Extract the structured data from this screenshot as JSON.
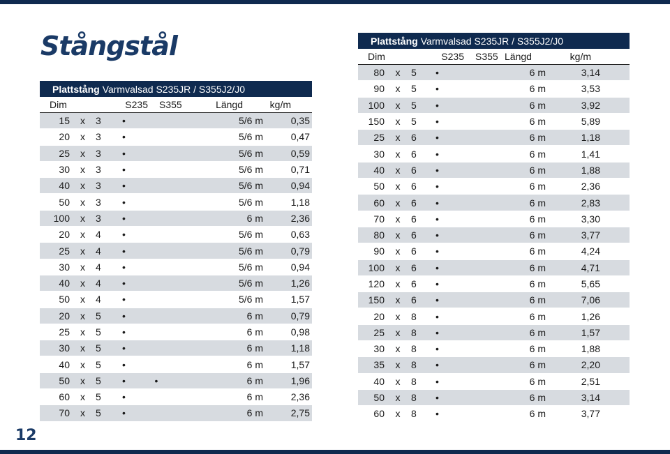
{
  "title": "Stångstål",
  "page_number": "12",
  "left_table": {
    "header_bold": "Plattstång",
    "header_rest": "Varmvalsad S235JR / S355J2/J0",
    "columns": {
      "dim": "Dim",
      "s235": "S235",
      "s355": "S355",
      "length": "Längd",
      "weight": "kg/m"
    },
    "rows": [
      {
        "w": "15",
        "x": "x",
        "t": "3",
        "s235": "•",
        "s355": "",
        "len": "5/6 m",
        "kg": "0,35"
      },
      {
        "w": "20",
        "x": "x",
        "t": "3",
        "s235": "•",
        "s355": "",
        "len": "5/6 m",
        "kg": "0,47"
      },
      {
        "w": "25",
        "x": "x",
        "t": "3",
        "s235": "•",
        "s355": "",
        "len": "5/6 m",
        "kg": "0,59"
      },
      {
        "w": "30",
        "x": "x",
        "t": "3",
        "s235": "•",
        "s355": "",
        "len": "5/6 m",
        "kg": "0,71"
      },
      {
        "w": "40",
        "x": "x",
        "t": "3",
        "s235": "•",
        "s355": "",
        "len": "5/6 m",
        "kg": "0,94"
      },
      {
        "w": "50",
        "x": "x",
        "t": "3",
        "s235": "•",
        "s355": "",
        "len": "5/6 m",
        "kg": "1,18"
      },
      {
        "w": "100",
        "x": "x",
        "t": "3",
        "s235": "•",
        "s355": "",
        "len": "6 m",
        "kg": "2,36"
      },
      {
        "w": "20",
        "x": "x",
        "t": "4",
        "s235": "•",
        "s355": "",
        "len": "5/6 m",
        "kg": "0,63"
      },
      {
        "w": "25",
        "x": "x",
        "t": "4",
        "s235": "•",
        "s355": "",
        "len": "5/6 m",
        "kg": "0,79"
      },
      {
        "w": "30",
        "x": "x",
        "t": "4",
        "s235": "•",
        "s355": "",
        "len": "5/6 m",
        "kg": "0,94"
      },
      {
        "w": "40",
        "x": "x",
        "t": "4",
        "s235": "•",
        "s355": "",
        "len": "5/6 m",
        "kg": "1,26"
      },
      {
        "w": "50",
        "x": "x",
        "t": "4",
        "s235": "•",
        "s355": "",
        "len": "5/6 m",
        "kg": "1,57"
      },
      {
        "w": "20",
        "x": "x",
        "t": "5",
        "s235": "•",
        "s355": "",
        "len": "6 m",
        "kg": "0,79"
      },
      {
        "w": "25",
        "x": "x",
        "t": "5",
        "s235": "•",
        "s355": "",
        "len": "6 m",
        "kg": "0,98"
      },
      {
        "w": "30",
        "x": "x",
        "t": "5",
        "s235": "•",
        "s355": "",
        "len": "6 m",
        "kg": "1,18"
      },
      {
        "w": "40",
        "x": "x",
        "t": "5",
        "s235": "•",
        "s355": "",
        "len": "6 m",
        "kg": "1,57"
      },
      {
        "w": "50",
        "x": "x",
        "t": "5",
        "s235": "•",
        "s355": "•",
        "len": "6 m",
        "kg": "1,96"
      },
      {
        "w": "60",
        "x": "x",
        "t": "5",
        "s235": "•",
        "s355": "",
        "len": "6 m",
        "kg": "2,36"
      },
      {
        "w": "70",
        "x": "x",
        "t": "5",
        "s235": "•",
        "s355": "",
        "len": "6 m",
        "kg": "2,75"
      }
    ]
  },
  "right_table": {
    "header_bold": "Plattstång",
    "header_rest": "Varmvalsad S235JR / S355J2/J0",
    "columns": {
      "dim": "Dim",
      "s235": "S235",
      "s355": "S355",
      "length": "Längd",
      "weight": "kg/m"
    },
    "rows": [
      {
        "w": "80",
        "x": "x",
        "t": "5",
        "s235": "•",
        "s355": "",
        "len": "6 m",
        "kg": "3,14"
      },
      {
        "w": "90",
        "x": "x",
        "t": "5",
        "s235": "•",
        "s355": "",
        "len": "6 m",
        "kg": "3,53"
      },
      {
        "w": "100",
        "x": "x",
        "t": "5",
        "s235": "•",
        "s355": "",
        "len": "6 m",
        "kg": "3,92"
      },
      {
        "w": "150",
        "x": "x",
        "t": "5",
        "s235": "•",
        "s355": "",
        "len": "6 m",
        "kg": "5,89"
      },
      {
        "w": "25",
        "x": "x",
        "t": "6",
        "s235": "•",
        "s355": "",
        "len": "6 m",
        "kg": "1,18"
      },
      {
        "w": "30",
        "x": "x",
        "t": "6",
        "s235": "•",
        "s355": "",
        "len": "6 m",
        "kg": "1,41"
      },
      {
        "w": "40",
        "x": "x",
        "t": "6",
        "s235": "•",
        "s355": "",
        "len": "6 m",
        "kg": "1,88"
      },
      {
        "w": "50",
        "x": "x",
        "t": "6",
        "s235": "•",
        "s355": "",
        "len": "6 m",
        "kg": "2,36"
      },
      {
        "w": "60",
        "x": "x",
        "t": "6",
        "s235": "•",
        "s355": "",
        "len": "6 m",
        "kg": "2,83"
      },
      {
        "w": "70",
        "x": "x",
        "t": "6",
        "s235": "•",
        "s355": "",
        "len": "6 m",
        "kg": "3,30"
      },
      {
        "w": "80",
        "x": "x",
        "t": "6",
        "s235": "•",
        "s355": "",
        "len": "6 m",
        "kg": "3,77"
      },
      {
        "w": "90",
        "x": "x",
        "t": "6",
        "s235": "•",
        "s355": "",
        "len": "6 m",
        "kg": "4,24"
      },
      {
        "w": "100",
        "x": "x",
        "t": "6",
        "s235": "•",
        "s355": "",
        "len": "6 m",
        "kg": "4,71"
      },
      {
        "w": "120",
        "x": "x",
        "t": "6",
        "s235": "•",
        "s355": "",
        "len": "6 m",
        "kg": "5,65"
      },
      {
        "w": "150",
        "x": "x",
        "t": "6",
        "s235": "•",
        "s355": "",
        "len": "6 m",
        "kg": "7,06"
      },
      {
        "w": "20",
        "x": "x",
        "t": "8",
        "s235": "•",
        "s355": "",
        "len": "6 m",
        "kg": "1,26"
      },
      {
        "w": "25",
        "x": "x",
        "t": "8",
        "s235": "•",
        "s355": "",
        "len": "6 m",
        "kg": "1,57"
      },
      {
        "w": "30",
        "x": "x",
        "t": "8",
        "s235": "•",
        "s355": "",
        "len": "6 m",
        "kg": "1,88"
      },
      {
        "w": "35",
        "x": "x",
        "t": "8",
        "s235": "•",
        "s355": "",
        "len": "6 m",
        "kg": "2,20"
      },
      {
        "w": "40",
        "x": "x",
        "t": "8",
        "s235": "•",
        "s355": "",
        "len": "6 m",
        "kg": "2,51"
      },
      {
        "w": "50",
        "x": "x",
        "t": "8",
        "s235": "•",
        "s355": "",
        "len": "6 m",
        "kg": "3,14"
      },
      {
        "w": "60",
        "x": "x",
        "t": "8",
        "s235": "•",
        "s355": "",
        "len": "6 m",
        "kg": "3,77"
      }
    ]
  },
  "colors": {
    "brand_navy": "#0f2a4f",
    "title_blue": "#1a3a66",
    "row_shade": "#d7dbe0"
  }
}
